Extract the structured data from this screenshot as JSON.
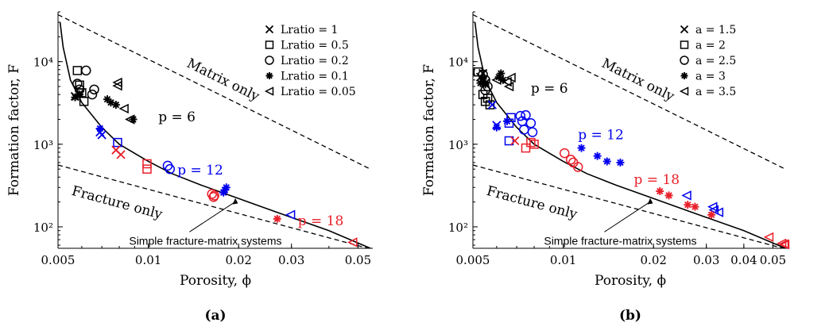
{
  "chart_data": [
    {
      "type": "scatter",
      "panel_label": "(a)",
      "xlabel": "Porosity, ϕ",
      "ylabel": "Formation factor, F",
      "x_scale": "log",
      "y_scale": "log",
      "xlim": [
        0.005,
        0.056
      ],
      "ylim": [
        55,
        40000
      ],
      "x_ticks": [
        0.005,
        0.01,
        0.02,
        0.03,
        0.05
      ],
      "x_tick_labels": [
        "0.005",
        "0.01",
        "0.02",
        "0.03",
        "0.05"
      ],
      "y_ticks": [
        100,
        1000,
        10000
      ],
      "y_tick_labels": [
        "10²",
        "10³",
        "10⁴"
      ],
      "legend_entries": [
        {
          "marker": "x",
          "label": "Lratio = 1"
        },
        {
          "marker": "square",
          "label": "Lratio = 0.5"
        },
        {
          "marker": "circle",
          "label": "Lratio = 0.2"
        },
        {
          "marker": "asterisk",
          "label": "Lratio = 0.1"
        },
        {
          "marker": "triangle-left",
          "label": "Lratio = 0.05"
        }
      ],
      "reference_lines": [
        {
          "label": "Matrix only",
          "points": [
            [
              0.005,
              37000
            ],
            [
              0.055,
              500
            ]
          ]
        },
        {
          "label": "Fracture only",
          "points": [
            [
              0.005,
              560
            ],
            [
              0.055,
              54
            ]
          ]
        }
      ],
      "model_curve": {
        "label": "Simple fracture-matrix systems",
        "points": [
          [
            0.00508,
            30000
          ],
          [
            0.0052,
            15000
          ],
          [
            0.0055,
            6000
          ],
          [
            0.006,
            3200
          ],
          [
            0.007,
            1600
          ],
          [
            0.008,
            1000
          ],
          [
            0.01,
            620
          ],
          [
            0.012,
            440
          ],
          [
            0.015,
            320
          ],
          [
            0.02,
            220
          ],
          [
            0.03,
            130
          ],
          [
            0.04,
            90
          ],
          [
            0.055,
            55
          ]
        ]
      },
      "group_labels": [
        {
          "text": "p = 6",
          "color": "#000000",
          "x": 0.0108,
          "y": 1900
        },
        {
          "text": "p = 12",
          "color": "#0000ee",
          "x": 0.0125,
          "y": 430
        },
        {
          "text": "p = 18",
          "color": "#e8202a",
          "x": 0.0315,
          "y": 105
        }
      ],
      "annotations": [
        {
          "text": "Matrix only",
          "x": 0.0175,
          "y": 5400
        },
        {
          "text": "Fracture only",
          "x": 0.0078,
          "y": 175
        },
        {
          "text": "Simple fracture-matrix systems",
          "x": 0.0155,
          "y": 61
        }
      ],
      "series": [
        {
          "color": "#000000",
          "marker": "asterisk",
          "points": [
            [
              0.0057,
              3700
            ],
            [
              0.0059,
              4000
            ],
            [
              0.0073,
              3500
            ],
            [
              0.0075,
              3200
            ],
            [
              0.0078,
              3000
            ],
            [
              0.0089,
              2000
            ]
          ]
        },
        {
          "color": "#000000",
          "marker": "square",
          "points": [
            [
              0.0058,
              7800
            ],
            [
              0.0059,
              5200
            ],
            [
              0.006,
              4200
            ],
            [
              0.0061,
              3300
            ]
          ]
        },
        {
          "color": "#000000",
          "marker": "circle",
          "points": [
            [
              0.0058,
              5400
            ],
            [
              0.0062,
              7800
            ],
            [
              0.0065,
              4000
            ],
            [
              0.0066,
              4600
            ],
            [
              0.0059,
              4600
            ]
          ]
        },
        {
          "color": "#000000",
          "marker": "triangle-left",
          "points": [
            [
              0.0079,
              5600
            ],
            [
              0.0079,
              5100
            ],
            [
              0.0083,
              2700
            ],
            [
              0.0087,
              2000
            ]
          ]
        },
        {
          "color": "#000000",
          "marker": "x",
          "points": [
            [
              0.0057,
              3800
            ],
            [
              0.0059,
              4100
            ]
          ]
        },
        {
          "color": "#0000ee",
          "marker": "x",
          "points": [
            [
              0.0069,
              1400
            ],
            [
              0.007,
              1300
            ]
          ]
        },
        {
          "color": "#0000ee",
          "marker": "asterisk",
          "points": [
            [
              0.0069,
              1550
            ]
          ]
        },
        {
          "color": "#0000ee",
          "marker": "circle",
          "points": [
            [
              0.0116,
              550
            ],
            [
              0.0118,
              500
            ]
          ]
        },
        {
          "color": "#0000ee",
          "marker": "asterisk",
          "points": [
            [
              0.0178,
              260
            ],
            [
              0.018,
              280
            ],
            [
              0.0182,
              300
            ]
          ]
        },
        {
          "color": "#0000ee",
          "marker": "triangle-left",
          "points": [
            [
              0.0298,
              140
            ]
          ]
        },
        {
          "color": "#0000ee",
          "marker": "square",
          "points": [
            [
              0.0079,
              1050
            ]
          ]
        },
        {
          "color": "#e8202a",
          "marker": "x",
          "points": [
            [
              0.0078,
              850
            ],
            [
              0.0081,
              750
            ]
          ]
        },
        {
          "color": "#e8202a",
          "marker": "square",
          "points": [
            [
              0.0099,
              580
            ],
            [
              0.0099,
              500
            ]
          ]
        },
        {
          "color": "#e8202a",
          "marker": "circle",
          "points": [
            [
              0.0163,
              250
            ],
            [
              0.0166,
              240
            ],
            [
              0.0165,
              230
            ]
          ]
        },
        {
          "color": "#e8202a",
          "marker": "asterisk",
          "points": [
            [
              0.0269,
              125
            ]
          ]
        },
        {
          "color": "#e8202a",
          "marker": "triangle-left",
          "points": [
            [
              0.048,
              65
            ]
          ]
        }
      ]
    },
    {
      "type": "scatter",
      "panel_label": "(b)",
      "xlabel": "Porosity, ϕ",
      "ylabel": "Formation factor, F",
      "x_scale": "log",
      "y_scale": "log",
      "xlim": [
        0.005,
        0.056
      ],
      "ylim": [
        55,
        40000
      ],
      "x_ticks": [
        0.005,
        0.01,
        0.02,
        0.03,
        0.04,
        0.05
      ],
      "x_tick_labels": [
        "0.005",
        "0.01",
        "0.02",
        "0.03",
        "0.04",
        "0.05"
      ],
      "y_ticks": [
        100,
        1000,
        10000
      ],
      "y_tick_labels": [
        "10²",
        "10³",
        "10⁴"
      ],
      "legend_entries": [
        {
          "marker": "x",
          "label": "a = 1.5"
        },
        {
          "marker": "square",
          "label": "a = 2"
        },
        {
          "marker": "circle",
          "label": "a = 2.5"
        },
        {
          "marker": "asterisk",
          "label": "a = 3"
        },
        {
          "marker": "triangle-left",
          "label": "a = 3.5"
        }
      ],
      "reference_lines": [
        {
          "label": "Matrix only",
          "points": [
            [
              0.005,
              37000
            ],
            [
              0.055,
              500
            ]
          ]
        },
        {
          "label": "Fracture only",
          "points": [
            [
              0.005,
              560
            ],
            [
              0.055,
              54
            ]
          ]
        }
      ],
      "model_curve": {
        "label": "Simple fracture-matrix systems",
        "points": [
          [
            0.00508,
            30000
          ],
          [
            0.0052,
            15000
          ],
          [
            0.0055,
            6000
          ],
          [
            0.006,
            3200
          ],
          [
            0.007,
            1600
          ],
          [
            0.008,
            1000
          ],
          [
            0.01,
            620
          ],
          [
            0.012,
            440
          ],
          [
            0.015,
            320
          ],
          [
            0.02,
            220
          ],
          [
            0.03,
            130
          ],
          [
            0.04,
            90
          ],
          [
            0.055,
            55
          ]
        ]
      },
      "group_labels": [
        {
          "text": "p = 6",
          "color": "#000000",
          "x": 0.0078,
          "y": 4200
        },
        {
          "text": "p = 12",
          "color": "#0000ee",
          "x": 0.0112,
          "y": 1150
        },
        {
          "text": "p = 18",
          "color": "#e8202a",
          "x": 0.0172,
          "y": 330
        }
      ],
      "annotations": [
        {
          "text": "Matrix only",
          "x": 0.0175,
          "y": 5400
        },
        {
          "text": "Fracture only",
          "x": 0.0078,
          "y": 175
        },
        {
          "text": "Simple fracture-matrix systems",
          "x": 0.0155,
          "y": 61
        }
      ],
      "series": [
        {
          "color": "#000000",
          "marker": "x",
          "points": [
            [
              0.0053,
              6500
            ],
            [
              0.0054,
              7200
            ],
            [
              0.0055,
              5500
            ]
          ]
        },
        {
          "color": "#000000",
          "marker": "square",
          "points": [
            [
              0.0052,
              7500
            ],
            [
              0.0054,
              4000
            ],
            [
              0.0055,
              3300
            ],
            [
              0.0056,
              3600
            ],
            [
              0.0057,
              3000
            ]
          ]
        },
        {
          "color": "#000000",
          "marker": "circle",
          "points": [
            [
              0.0054,
              7000
            ],
            [
              0.0055,
              6000
            ],
            [
              0.0056,
              5000
            ],
            [
              0.0055,
              4500
            ]
          ]
        },
        {
          "color": "#000000",
          "marker": "asterisk",
          "points": [
            [
              0.0053,
              5500
            ],
            [
              0.0054,
              6200
            ],
            [
              0.0055,
              5300
            ],
            [
              0.0062,
              7200
            ],
            [
              0.0061,
              6500
            ],
            [
              0.0063,
              6000
            ]
          ]
        },
        {
          "color": "#000000",
          "marker": "triangle-left",
          "points": [
            [
              0.006,
              6000
            ],
            [
              0.0065,
              5700
            ],
            [
              0.0067,
              6400
            ],
            [
              0.0066,
              5000
            ]
          ]
        },
        {
          "color": "#0000ee",
          "marker": "x",
          "points": [
            [
              0.0058,
              3000
            ],
            [
              0.006,
              1700
            ]
          ]
        },
        {
          "color": "#0000ee",
          "marker": "asterisk",
          "points": [
            [
              0.006,
              1600
            ],
            [
              0.0065,
              1900
            ]
          ]
        },
        {
          "color": "#0000ee",
          "marker": "square",
          "points": [
            [
              0.0066,
              1800
            ],
            [
              0.0067,
              2100
            ],
            [
              0.0066,
              1100
            ]
          ]
        },
        {
          "color": "#0000ee",
          "marker": "circle",
          "points": [
            [
              0.0072,
              2200
            ],
            [
              0.0073,
              1900
            ],
            [
              0.0075,
              2250
            ],
            [
              0.0078,
              1800
            ],
            [
              0.0074,
              1500
            ],
            [
              0.0079,
              1400
            ]
          ]
        },
        {
          "color": "#0000ee",
          "marker": "asterisk",
          "points": [
            [
              0.0115,
              900
            ],
            [
              0.013,
              720
            ],
            [
              0.014,
              620
            ],
            [
              0.0155,
              600
            ]
          ]
        },
        {
          "color": "#0000ee",
          "marker": "triangle-left",
          "points": [
            [
              0.0258,
              240
            ],
            [
              0.0315,
              175
            ],
            [
              0.0318,
              160
            ],
            [
              0.033,
              150
            ]
          ]
        },
        {
          "color": "#e8202a",
          "marker": "x",
          "points": [
            [
              0.0069,
              1100
            ]
          ]
        },
        {
          "color": "#e8202a",
          "marker": "square",
          "points": [
            [
              0.0075,
              900
            ],
            [
              0.0078,
              1050
            ],
            [
              0.008,
              1000
            ]
          ]
        },
        {
          "color": "#e8202a",
          "marker": "circle",
          "points": [
            [
              0.0101,
              780
            ],
            [
              0.0106,
              650
            ],
            [
              0.0108,
              600
            ],
            [
              0.0112,
              530
            ]
          ]
        },
        {
          "color": "#e8202a",
          "marker": "asterisk",
          "points": [
            [
              0.021,
              270
            ],
            [
              0.0225,
              240
            ],
            [
              0.026,
              185
            ],
            [
              0.0275,
              175
            ],
            [
              0.0312,
              140
            ]
          ]
        },
        {
          "color": "#e8202a",
          "marker": "triangle-left",
          "points": [
            [
              0.0485,
              75
            ],
            [
              0.0535,
              63
            ],
            [
              0.0545,
              62
            ],
            [
              0.0548,
              61
            ]
          ]
        }
      ]
    }
  ]
}
